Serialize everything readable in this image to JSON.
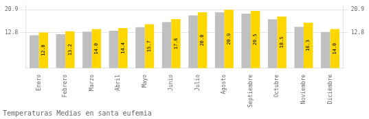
{
  "chart_data": {
    "type": "bar",
    "title": "Temperaturas Medias en santa eufemia",
    "categories": [
      "Enero",
      "Febrero",
      "Marzo",
      "Abril",
      "Mayo",
      "Junio",
      "Julio",
      "Agosto",
      "Septiembre",
      "Octubre",
      "Noviembre",
      "Diciembre"
    ],
    "series": [
      {
        "color": "#C0C0C0",
        "values": [
          11.8,
          12.2,
          13.1,
          13.4,
          14.7,
          16.5,
          18.9,
          20.0,
          19.5,
          17.5,
          14.8,
          13.0
        ]
      },
      {
        "color": "#FFD700",
        "values": [
          12.8,
          13.2,
          14.0,
          14.4,
          15.7,
          17.6,
          20.0,
          20.9,
          20.5,
          18.5,
          16.3,
          14.0
        ],
        "data_labels": true,
        "value_labels": [
          "12.8",
          "13.2",
          "14.0",
          "14.4",
          "15.7",
          "17.6",
          "20.0",
          "20.9",
          "20.5",
          "18.5",
          "16.3",
          "14.0"
        ]
      }
    ],
    "ylim": [
      0,
      22.5
    ],
    "yticks": [
      12.8,
      20.9
    ],
    "y2lim": [
      0,
      22.5
    ],
    "y2ticks": [
      12.8,
      20.9
    ],
    "grid": true
  }
}
